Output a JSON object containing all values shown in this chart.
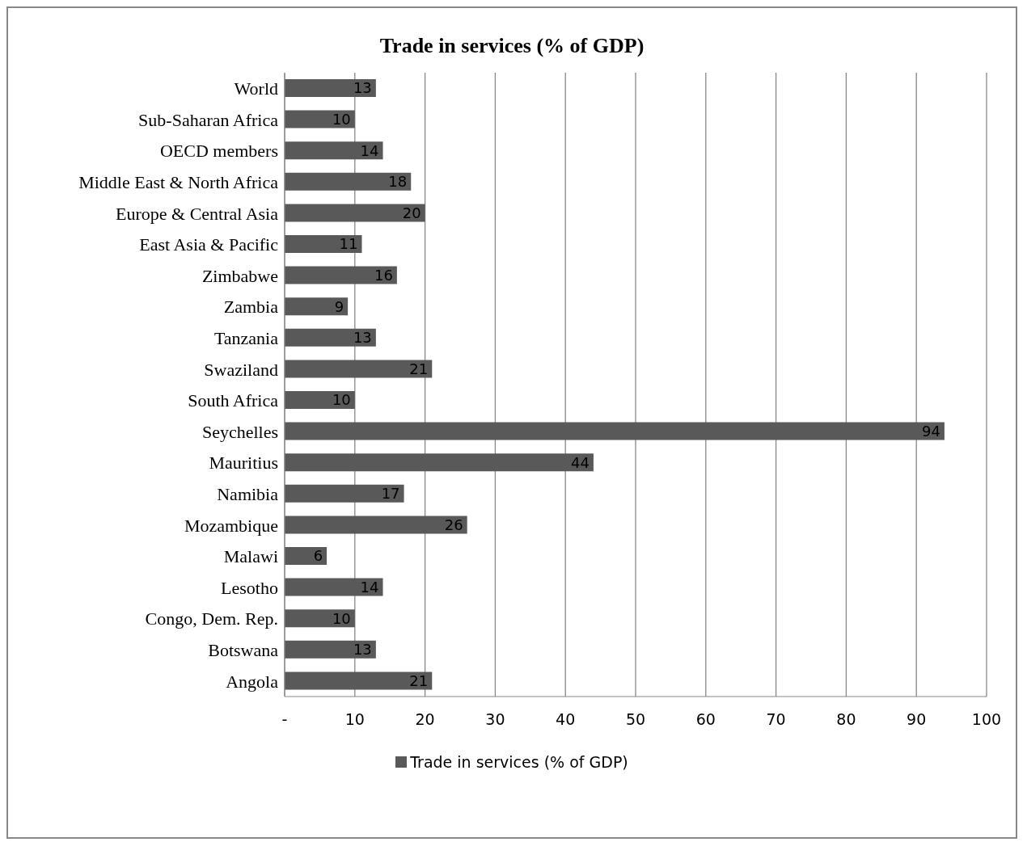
{
  "chart_data": {
    "type": "bar",
    "orientation": "horizontal",
    "title": "Trade in services (% of GDP)",
    "categories": [
      "World",
      "Sub-Saharan Africa",
      "OECD members",
      "Middle East & North Africa",
      "Europe & Central Asia",
      "East Asia & Pacific",
      "Zimbabwe",
      "Zambia",
      "Tanzania",
      "Swaziland",
      "South Africa",
      "Seychelles",
      "Mauritius",
      "Namibia",
      "Mozambique",
      "Malawi",
      "Lesotho",
      "Congo, Dem. Rep.",
      "Botswana",
      "Angola"
    ],
    "series": [
      {
        "name": "Trade in services (% of GDP)",
        "color": "#595959",
        "values": [
          13,
          10,
          14,
          18,
          20,
          11,
          16,
          9,
          13,
          21,
          10,
          94,
          44,
          17,
          26,
          6,
          14,
          10,
          13,
          21
        ]
      }
    ],
    "xlim": [
      0,
      100
    ],
    "xticks": [
      {
        "value": 0,
        "label": "-"
      },
      10,
      20,
      30,
      40,
      50,
      60,
      70,
      80,
      90,
      100
    ],
    "grid": "x",
    "legend": "bottom",
    "data_labels": true
  }
}
